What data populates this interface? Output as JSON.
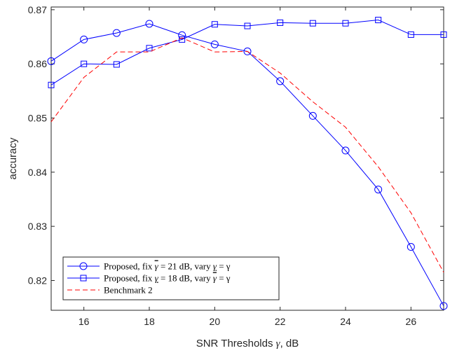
{
  "chart_data": {
    "type": "line",
    "xlabel_prefix": "SNR Thresholds ",
    "xlabel_symbol": "γ",
    "xlabel_suffix": ", dB",
    "ylabel": "accuracy",
    "xlim": [
      15,
      27
    ],
    "ylim": [
      0.8145,
      0.8705
    ],
    "xticks": [
      16,
      18,
      20,
      22,
      24,
      26
    ],
    "yticks": [
      0.82,
      0.83,
      0.84,
      0.85,
      0.86,
      0.87
    ],
    "ytick_labels": [
      "0.82",
      "0.83",
      "0.84",
      "0.85",
      "0.86",
      "0.87"
    ],
    "grid": false,
    "legend_position": "bottom-left",
    "series": [
      {
        "name": "Proposed, fix γ̄ = 21 dB, vary γ̲ = γ",
        "color": "#0000ff",
        "line": "solid",
        "marker": "circle",
        "x": [
          15,
          16,
          17,
          18,
          19,
          20,
          21,
          22,
          23,
          24,
          25,
          26,
          27
        ],
        "y": [
          0.8605,
          0.8645,
          0.8657,
          0.8674,
          0.8653,
          0.8636,
          0.8623,
          0.8568,
          0.8504,
          0.844,
          0.8368,
          0.8262,
          0.8153
        ]
      },
      {
        "name": "Proposed, fix γ̲ = 18 dB, vary γ̄ = γ",
        "color": "#0000ff",
        "line": "solid",
        "marker": "square",
        "x": [
          15,
          16,
          17,
          18,
          19,
          20,
          21,
          22,
          23,
          24,
          25,
          26,
          27
        ],
        "y": [
          0.8561,
          0.86,
          0.8599,
          0.8629,
          0.8645,
          0.8673,
          0.867,
          0.8676,
          0.8675,
          0.8675,
          0.8681,
          0.8654,
          0.8654
        ]
      },
      {
        "name": "Benchmark 2",
        "color": "#ff0000",
        "line": "dashed",
        "marker": "none",
        "x": [
          15,
          16,
          17,
          18,
          19,
          20,
          21,
          22,
          23,
          24,
          25,
          26,
          27
        ],
        "y": [
          0.8493,
          0.8575,
          0.8622,
          0.8622,
          0.8648,
          0.8622,
          0.8623,
          0.8583,
          0.853,
          0.8483,
          0.841,
          0.8325,
          0.8215
        ]
      }
    ],
    "legend_entries": [
      {
        "pre": "Proposed, fix ",
        "sym": "γ",
        "decor": "over",
        "mid": " = 21 dB, vary ",
        "sym2": "γ",
        "decor2": "under",
        "post": " = γ"
      },
      {
        "pre": "Proposed, fix ",
        "sym": "γ",
        "decor": "under",
        "mid": " = 18 dB, vary ",
        "sym2": "γ",
        "decor2": "over",
        "post": " = γ"
      },
      {
        "pre": "Benchmark 2",
        "sym": "",
        "decor": "",
        "mid": "",
        "sym2": "",
        "decor2": "",
        "post": ""
      }
    ]
  }
}
